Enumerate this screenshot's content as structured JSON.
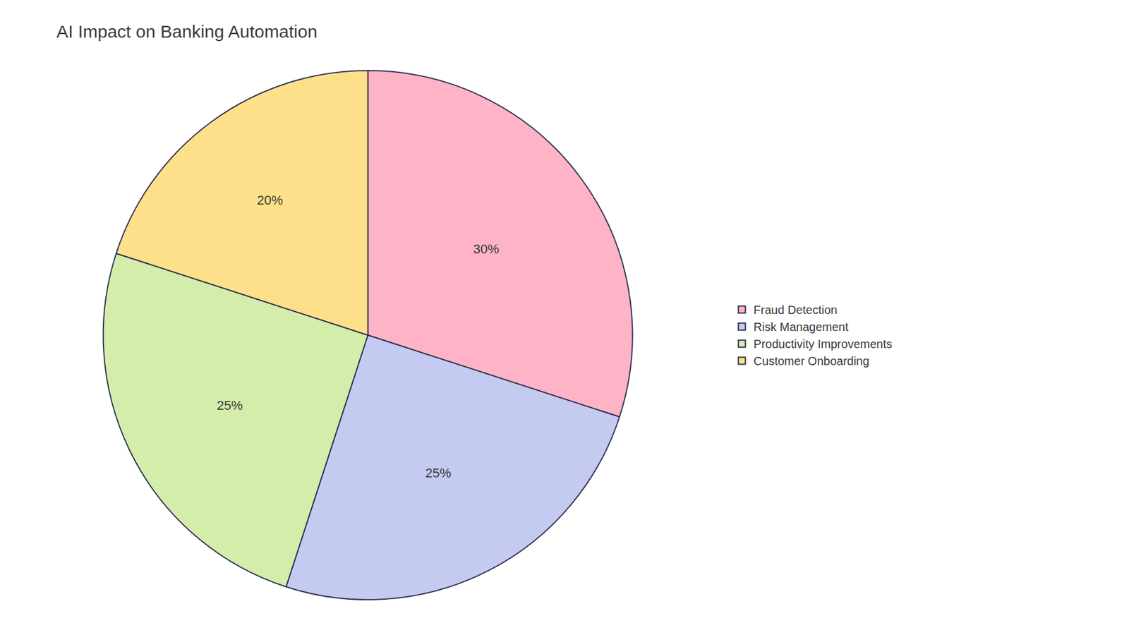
{
  "chart_data": {
    "type": "pie",
    "title": "AI Impact on Banking Automation",
    "categories": [
      "Fraud Detection",
      "Risk Management",
      "Productivity Improvements",
      "Customer Onboarding"
    ],
    "values": [
      30,
      25,
      25,
      20
    ],
    "value_labels": [
      "30%",
      "25%",
      "25%",
      "20%"
    ],
    "colors": [
      "#FFB3C6",
      "#C5CAF0",
      "#D4EDAA",
      "#FFE08A"
    ],
    "data_labels": true,
    "legend": "right"
  }
}
